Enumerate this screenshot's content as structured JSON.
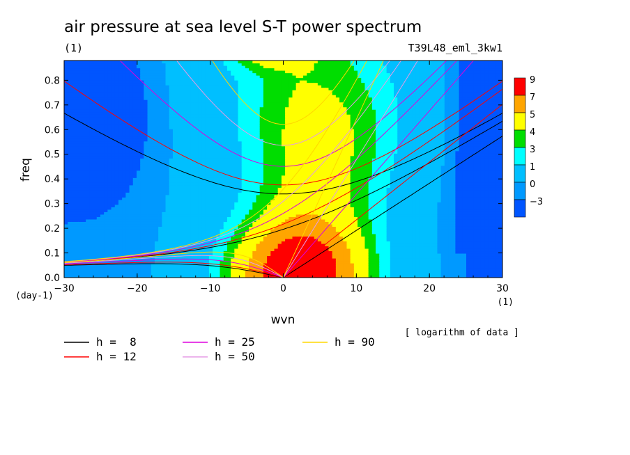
{
  "chart_data": {
    "type": "heatmap",
    "title": "air pressure at sea level S-T power spectrum",
    "title_unit": "(1)",
    "experiment": "T39L48_eml_3kw1",
    "xlabel": "wvn",
    "x_unit": "(1)",
    "ylabel": "freq",
    "y_unit": "(day-1)",
    "note": "[ logarithm of data ]",
    "xlim": [
      -30,
      30
    ],
    "ylim": [
      0,
      0.88
    ],
    "x_ticks": [
      -30,
      -20,
      -10,
      0,
      10,
      20,
      30
    ],
    "y_ticks": [
      0.0,
      0.1,
      0.2,
      0.3,
      0.4,
      0.5,
      0.6,
      0.7,
      0.8
    ],
    "x_tick_labels": [
      "−30",
      "−20",
      "−10",
      "0",
      "10",
      "20",
      "30"
    ],
    "y_tick_labels": [
      "0.0",
      "0.1",
      "0.2",
      "0.3",
      "0.4",
      "0.5",
      "0.6",
      "0.7",
      "0.8"
    ],
    "colorbar": {
      "labels": [
        "9",
        "7",
        "5",
        "4",
        "3",
        "1",
        "0",
        "−3"
      ],
      "colors": [
        "#ff0000",
        "#ffa500",
        "#ffff00",
        "#00dd00",
        "#00ffff",
        "#00bfff",
        "#0099ff",
        "#0055ff"
      ]
    },
    "contour_levels": {
      "description": "log power; level index 0=(-3..0) ... 6=(7..9)",
      "colors": [
        "#0055ff",
        "#0099ff",
        "#00bfff",
        "#00ffff",
        "#00dd00",
        "#ffff00",
        "#ffa500",
        "#ff0000"
      ]
    },
    "dispersion_curves": [
      {
        "name": "h =  8",
        "h": 8,
        "color": "#000000"
      },
      {
        "name": "h = 12",
        "h": 12,
        "color": "#ff0000"
      },
      {
        "name": "h = 25",
        "h": 25,
        "color": "#dd00dd"
      },
      {
        "name": "h = 50",
        "h": 50,
        "color": "#e59be5"
      },
      {
        "name": "h = 90",
        "h": 90,
        "color": "#ffd700"
      }
    ]
  }
}
